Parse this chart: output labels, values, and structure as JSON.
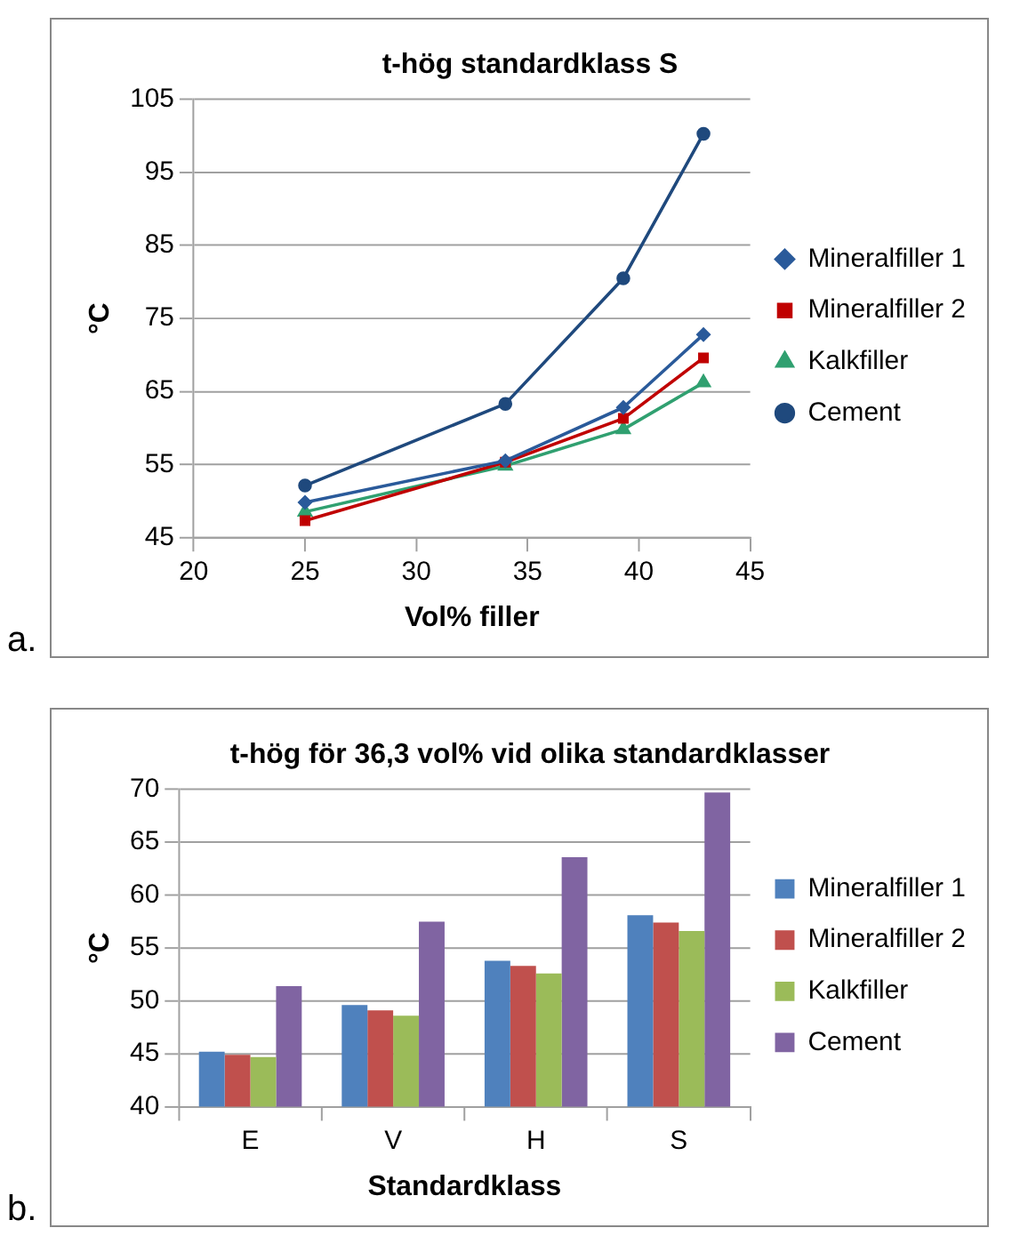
{
  "chart_data": [
    {
      "type": "line",
      "title": "t-hög standardklass S",
      "xlabel": "Vol% filler",
      "ylabel": "°C",
      "x": [
        25,
        34,
        39.3,
        42.9
      ],
      "series": [
        {
          "name": "Mineralfiller 1",
          "color": "#2a5a9a",
          "marker": "diamond",
          "values": [
            49.8,
            55.5,
            62.8,
            72.8
          ]
        },
        {
          "name": "Mineralfiller 2",
          "color": "#c00000",
          "marker": "square",
          "values": [
            47.3,
            55.3,
            61.3,
            69.6
          ]
        },
        {
          "name": "Kalkfiller",
          "color": "#30a070",
          "marker": "triangle",
          "values": [
            48.5,
            54.8,
            59.8,
            66.2
          ]
        },
        {
          "name": "Cement",
          "color": "#1f497d",
          "marker": "circle",
          "values": [
            52.1,
            63.3,
            80.5,
            100.3
          ]
        }
      ],
      "xlim": [
        20,
        45
      ],
      "xticks": [
        20,
        25,
        30,
        35,
        40,
        45
      ],
      "ylim": [
        45,
        105
      ],
      "yticks": [
        45,
        55,
        65,
        75,
        85,
        95,
        105
      ],
      "grid": "y",
      "legend": "right",
      "line_style": "solid",
      "annotations": [
        "a."
      ]
    },
    {
      "type": "bar",
      "title": "t-hög för 36,3 vol% vid olika standardklasser",
      "xlabel": "Standardklass",
      "ylabel": "°C",
      "categories": [
        "E",
        "V",
        "H",
        "S"
      ],
      "series": [
        {
          "name": "Mineralfiller 1",
          "color": "#4f81bd",
          "values": [
            45.2,
            49.6,
            53.8,
            58.1
          ]
        },
        {
          "name": "Mineralfiller 2",
          "color": "#c0504d",
          "values": [
            44.9,
            49.1,
            53.3,
            57.4
          ]
        },
        {
          "name": "Kalkfiller",
          "color": "#9bbb59",
          "values": [
            44.7,
            48.6,
            52.6,
            56.6
          ]
        },
        {
          "name": "Cement",
          "color": "#8064a2",
          "values": [
            51.4,
            57.5,
            63.6,
            69.7
          ]
        }
      ],
      "ylim": [
        40,
        70
      ],
      "yticks": [
        40,
        45,
        50,
        55,
        60,
        65,
        70
      ],
      "grid": "y",
      "legend": "right",
      "annotations": [
        "b."
      ]
    }
  ]
}
